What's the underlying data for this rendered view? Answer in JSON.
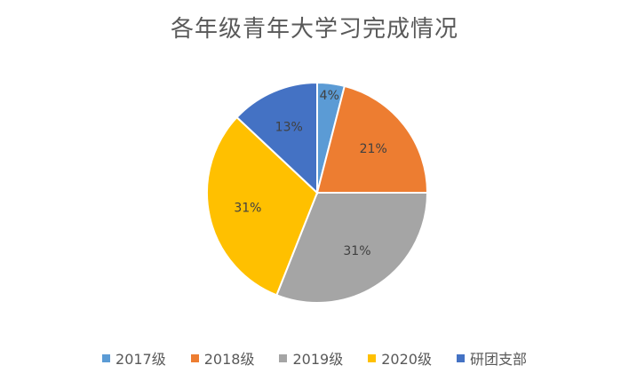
{
  "chart_data": {
    "type": "pie",
    "title": "各年级青年大学习完成情况",
    "categories": [
      "2017级",
      "2018级",
      "2019级",
      "2020级",
      "研团支部"
    ],
    "values": [
      4,
      21,
      31,
      31,
      13
    ],
    "labels": [
      "4%",
      "21%",
      "31%",
      "31%",
      "13%"
    ],
    "colors": [
      "#5B9BD5",
      "#ED7D31",
      "#A5A5A5",
      "#FFC000",
      "#4472C4"
    ],
    "start_angle_deg": 0,
    "direction": "clockwise",
    "legend_position": "bottom"
  }
}
